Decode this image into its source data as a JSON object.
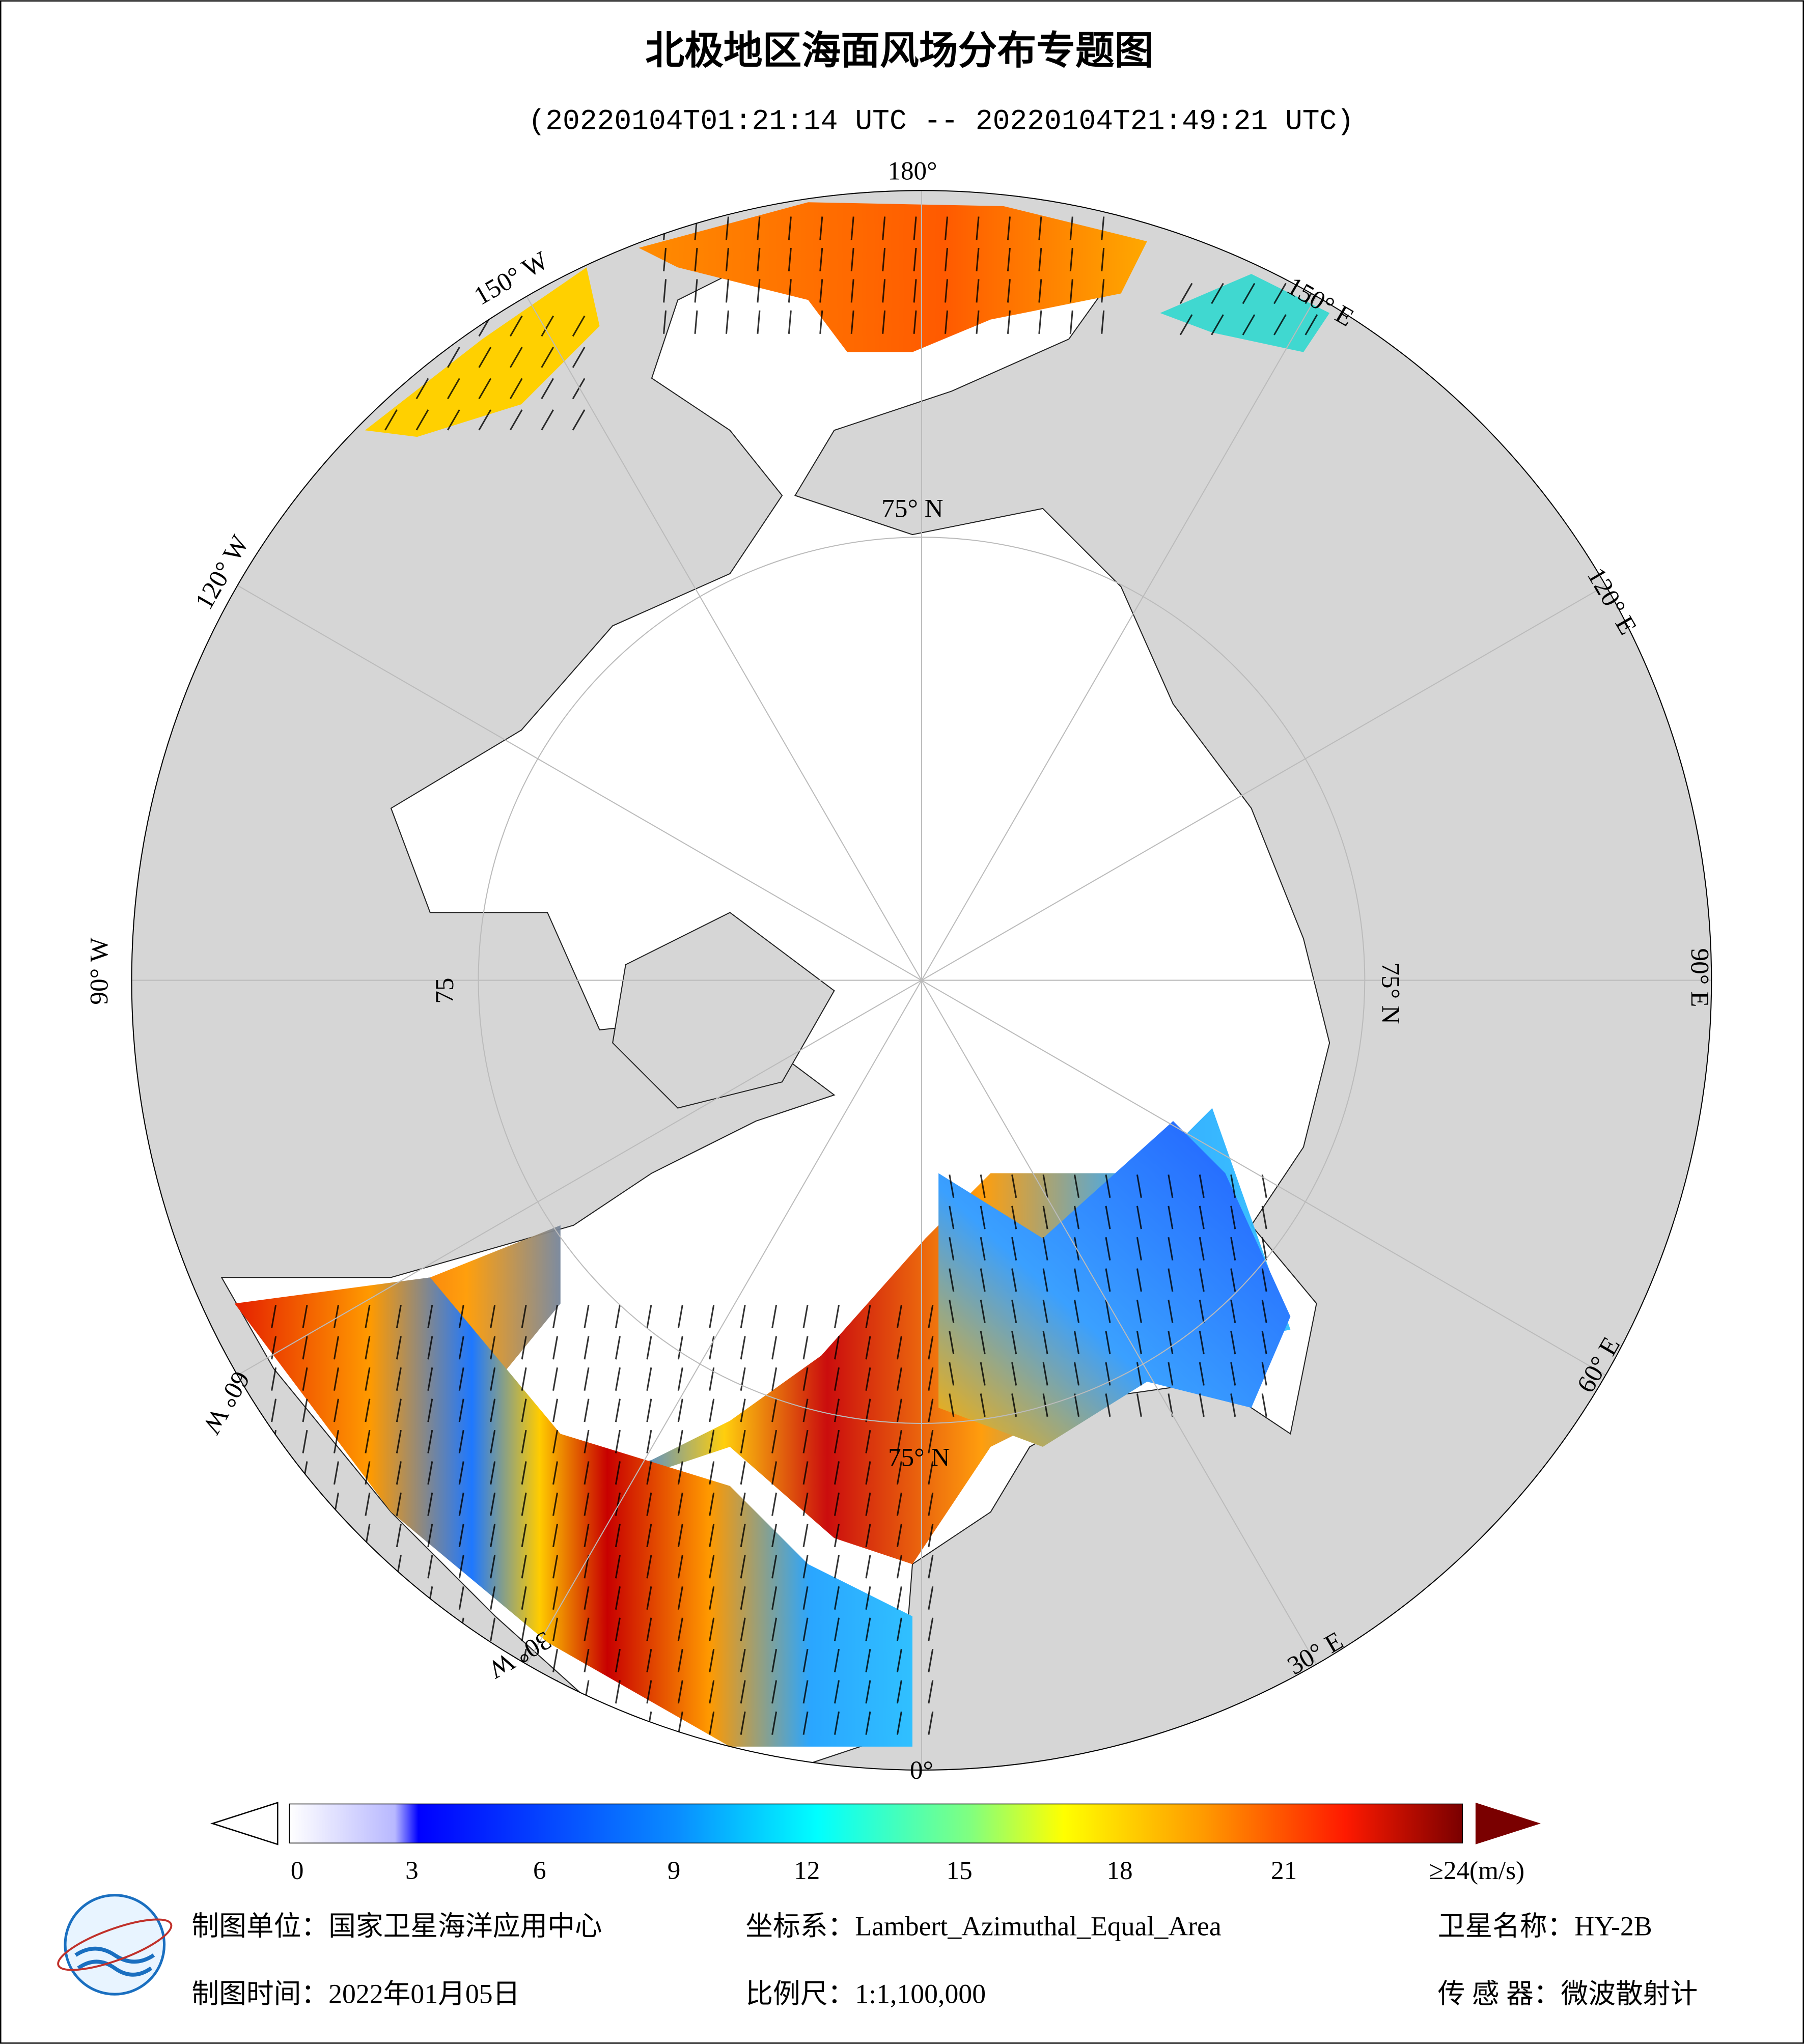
{
  "header": {
    "title": "北极地区海面风场分布专题图",
    "subtitle": "(20220104T01:21:14 UTC -- 20220104T21:49:21 UTC)"
  },
  "map": {
    "longitude_labels": [
      "180°",
      "150° E",
      "120° E",
      "90° E",
      "60° E",
      "30° E",
      "0°",
      "30° W",
      "60° W",
      "90° W",
      "120° W",
      "150° W"
    ],
    "latitude_labels": [
      "75° N",
      "75° N",
      "75° N",
      "75"
    ]
  },
  "colorbar": {
    "ticks": [
      "0",
      "3",
      "6",
      "9",
      "12",
      "15",
      "18",
      "21",
      "≥24(m/s)"
    ]
  },
  "footer": {
    "items": [
      "制图单位：国家卫星海洋应用中心",
      "坐标系：Lambert_Azimuthal_Equal_Area",
      "卫星名称：HY-2B",
      "制图时间：2022年01月05日",
      "比例尺：1:1,100,000",
      "传 感 器：微波散射计"
    ]
  }
}
